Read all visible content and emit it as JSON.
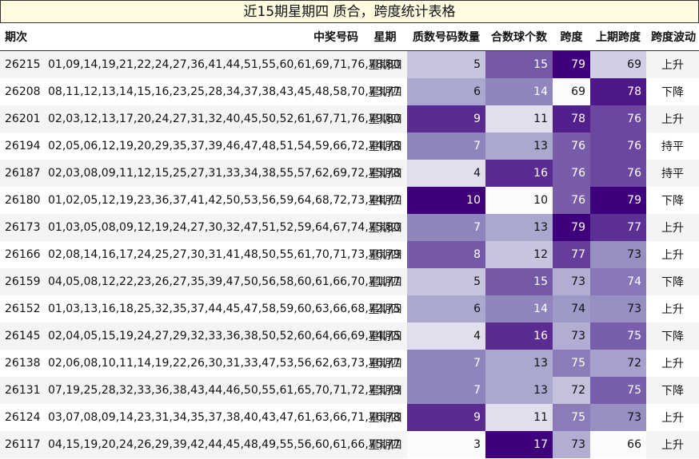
{
  "title": "近15期星期四 质合，跨度统计表格",
  "headers": [
    "期次",
    "中奖号码",
    "星期",
    "质数号码数量",
    "合数球个数",
    "跨度",
    "上期跨度",
    "跨度波动"
  ],
  "rows": [
    {
      "issue": "26215",
      "numbers": "01,09,14,19,21,22,24,27,36,41,44,51,55,60,61,69,71,76,78,80",
      "weekday": "星期四",
      "prime": "5",
      "composite": "15",
      "span": "79",
      "prev_span": "69",
      "trend": "上升"
    },
    {
      "issue": "26208",
      "numbers": "08,11,12,13,14,15,16,23,25,28,34,37,38,43,45,48,58,70,73,77",
      "weekday": "星期四",
      "prime": "6",
      "composite": "14",
      "span": "69",
      "prev_span": "78",
      "trend": "下降"
    },
    {
      "issue": "26201",
      "numbers": "02,03,12,13,17,20,24,27,31,32,40,45,50,52,61,67,71,76,79,80",
      "weekday": "星期四",
      "prime": "9",
      "composite": "11",
      "span": "78",
      "prev_span": "76",
      "trend": "上升"
    },
    {
      "issue": "26194",
      "numbers": "02,05,06,12,19,20,29,35,37,39,46,47,48,51,54,59,66,72,74,78",
      "weekday": "星期四",
      "prime": "7",
      "composite": "13",
      "span": "76",
      "prev_span": "76",
      "trend": "持平"
    },
    {
      "issue": "26187",
      "numbers": "02,03,08,09,11,12,15,25,27,31,33,34,38,55,57,62,69,72,75,78",
      "weekday": "星期四",
      "prime": "4",
      "composite": "16",
      "span": "76",
      "prev_span": "76",
      "trend": "持平"
    },
    {
      "issue": "26180",
      "numbers": "01,02,05,12,19,23,36,37,41,42,50,53,56,59,64,68,72,73,74,77",
      "weekday": "星期四",
      "prime": "10",
      "composite": "10",
      "span": "76",
      "prev_span": "79",
      "trend": "下降"
    },
    {
      "issue": "26173",
      "numbers": "01,03,05,08,09,12,19,24,27,30,32,47,51,52,59,64,67,74,75,80",
      "weekday": "星期四",
      "prime": "7",
      "composite": "13",
      "span": "79",
      "prev_span": "77",
      "trend": "上升"
    },
    {
      "issue": "26166",
      "numbers": "02,08,14,16,17,24,25,27,30,31,41,48,50,55,61,70,71,73,76,79",
      "weekday": "星期四",
      "prime": "8",
      "composite": "12",
      "span": "77",
      "prev_span": "73",
      "trend": "上升"
    },
    {
      "issue": "26159",
      "numbers": "04,05,08,12,22,23,26,27,35,39,47,50,56,58,60,61,66,70,71,77",
      "weekday": "星期四",
      "prime": "5",
      "composite": "15",
      "span": "73",
      "prev_span": "74",
      "trend": "下降"
    },
    {
      "issue": "26152",
      "numbers": "01,03,13,16,18,25,32,35,37,44,45,47,58,59,60,63,66,68,72,75",
      "weekday": "星期四",
      "prime": "6",
      "composite": "14",
      "span": "74",
      "prev_span": "73",
      "trend": "上升"
    },
    {
      "issue": "26145",
      "numbers": "02,04,05,15,19,24,27,29,32,33,36,38,50,52,60,64,66,69,74,75",
      "weekday": "星期四",
      "prime": "4",
      "composite": "16",
      "span": "73",
      "prev_span": "75",
      "trend": "下降"
    },
    {
      "issue": "26138",
      "numbers": "02,06,08,10,11,14,19,22,26,30,31,33,47,53,56,62,63,73,76,77",
      "weekday": "星期四",
      "prime": "7",
      "composite": "13",
      "span": "75",
      "prev_span": "72",
      "trend": "上升"
    },
    {
      "issue": "26131",
      "numbers": "07,19,25,28,32,33,36,38,43,44,46,50,55,61,65,70,71,72,73,79",
      "weekday": "星期四",
      "prime": "7",
      "composite": "13",
      "span": "72",
      "prev_span": "75",
      "trend": "下降"
    },
    {
      "issue": "26124",
      "numbers": "03,07,08,09,14,23,31,34,35,37,38,40,43,47,61,63,66,71,76,78",
      "weekday": "星期四",
      "prime": "9",
      "composite": "11",
      "span": "75",
      "prev_span": "73",
      "trend": "上升"
    },
    {
      "issue": "26117",
      "numbers": "04,15,19,20,24,26,29,39,42,44,45,48,49,55,56,60,61,66,75,77",
      "weekday": "星期四",
      "prime": "3",
      "composite": "17",
      "span": "73",
      "prev_span": "66",
      "trend": "上升"
    }
  ]
}
